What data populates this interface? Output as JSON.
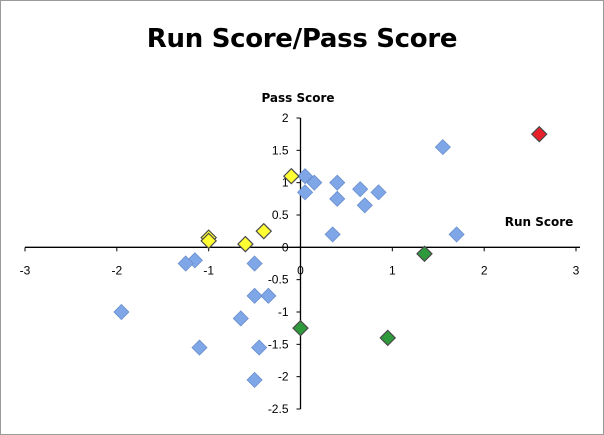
{
  "chart_data": {
    "type": "scatter",
    "title": "Run Score/Pass Score",
    "xlabel": "Run Score",
    "ylabel": "Pass Score",
    "xlim": [
      -3,
      3
    ],
    "ylim": [
      -2.5,
      2
    ],
    "x_ticks": [
      -3,
      -2,
      -1,
      0,
      1,
      2,
      3
    ],
    "y_ticks": [
      2,
      1.5,
      1,
      0.5,
      0,
      -0.5,
      -1,
      -1.5,
      -2,
      -2.5
    ],
    "grid": false,
    "legend": "none",
    "marker": "diamond",
    "series": [
      {
        "color": "#7fa6e6",
        "points": [
          [
            0.05,
            1.1
          ],
          [
            0.15,
            1.0
          ],
          [
            0.4,
            1.0
          ],
          [
            0.65,
            0.9
          ],
          [
            0.85,
            0.85
          ],
          [
            0.05,
            0.85
          ],
          [
            0.4,
            0.75
          ],
          [
            0.7,
            0.65
          ],
          [
            1.55,
            1.55
          ],
          [
            0.35,
            0.2
          ],
          [
            1.7,
            0.2
          ],
          [
            -0.5,
            -0.25
          ],
          [
            -1.15,
            -0.2
          ],
          [
            -1.25,
            -0.25
          ],
          [
            -0.5,
            -0.75
          ],
          [
            -0.35,
            -0.75
          ],
          [
            -1.95,
            -1.0
          ],
          [
            -0.65,
            -1.1
          ],
          [
            -1.1,
            -1.55
          ],
          [
            -0.45,
            -1.55
          ],
          [
            -0.5,
            -2.05
          ]
        ]
      },
      {
        "color": "#ffff33",
        "points": [
          [
            -0.1,
            1.1
          ],
          [
            -1.0,
            0.15
          ],
          [
            -1.0,
            0.1
          ],
          [
            -0.6,
            0.05
          ],
          [
            -0.4,
            0.25
          ]
        ]
      },
      {
        "color": "#2e9a3c",
        "points": [
          [
            1.35,
            -0.1
          ],
          [
            0.0,
            -1.25
          ],
          [
            0.95,
            -1.4
          ]
        ]
      },
      {
        "color": "#e8202a",
        "points": [
          [
            2.6,
            1.75
          ]
        ]
      }
    ]
  }
}
